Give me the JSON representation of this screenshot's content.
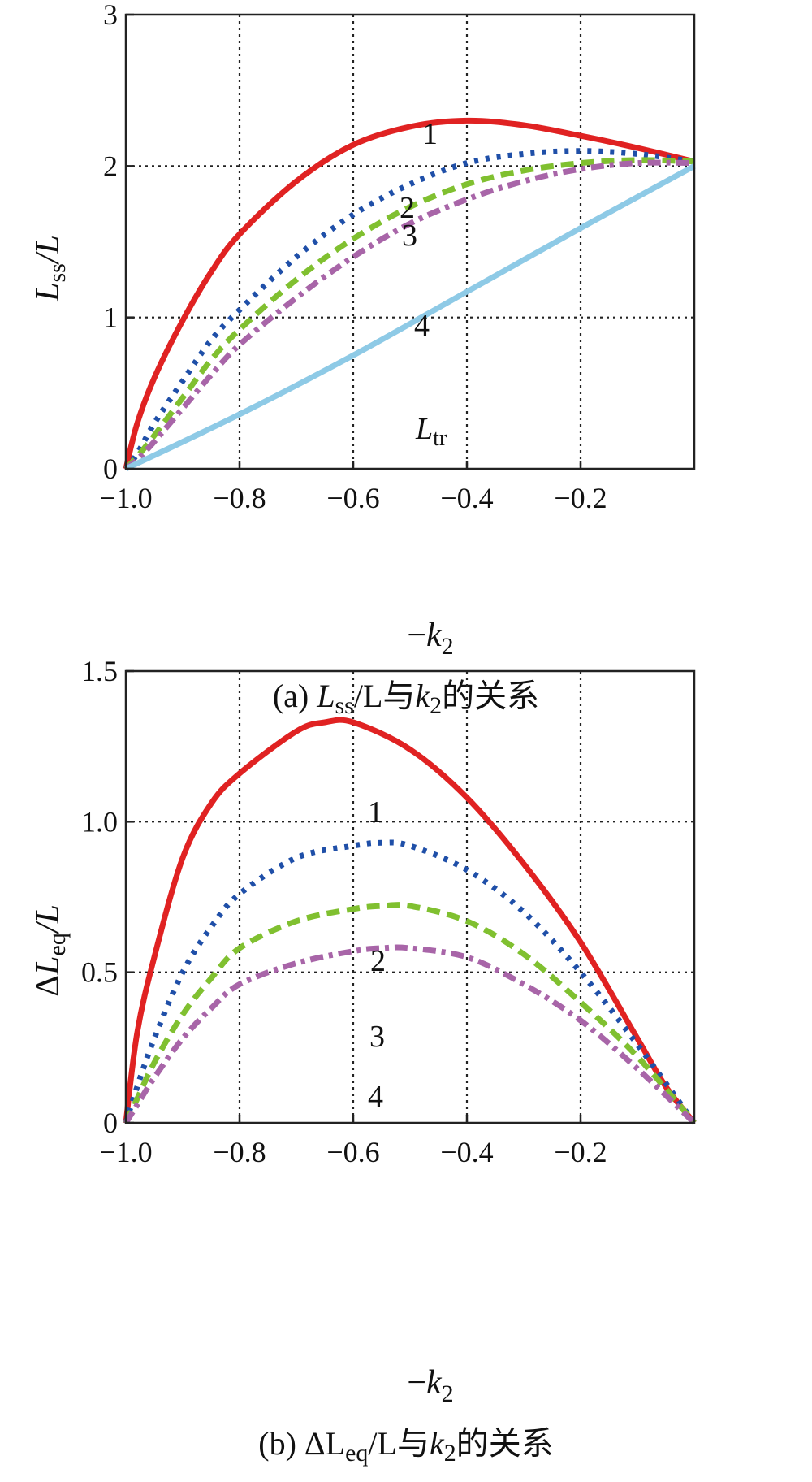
{
  "chart_data": [
    {
      "type": "line",
      "panel": "a",
      "xlabel": "−k",
      "xlabel_sub": "2",
      "ylabel": "L",
      "ylabel_sub": "ss",
      "ylabel_tail": "/L",
      "caption": {
        "prefix": "(a) ",
        "l1": "L",
        "sub1": "ss",
        "mid": "/L与",
        "k": "k",
        "ksub": "2",
        "tail": "的关系"
      },
      "xlim": [
        -1.0,
        0.0
      ],
      "ylim": [
        0,
        3
      ],
      "x_ticks": [
        -1.0,
        -0.8,
        -0.6,
        -0.4,
        -0.2
      ],
      "x_tick_labels": [
        "−1.0",
        "−0.8",
        "−0.6",
        "−0.4",
        "−0.2"
      ],
      "y_ticks": [
        0,
        1,
        2,
        3
      ],
      "y_tick_labels": [
        "0",
        "1",
        "2",
        "3"
      ],
      "grid": true,
      "series": [
        {
          "name": "1",
          "color": "#e02222",
          "style": "solid",
          "x": [
            -1.0,
            -0.98,
            -0.95,
            -0.9,
            -0.85,
            -0.8,
            -0.7,
            -0.6,
            -0.5,
            -0.4,
            -0.3,
            -0.2,
            -0.1,
            0.0
          ],
          "y": [
            0.0,
            0.3,
            0.6,
            0.98,
            1.3,
            1.55,
            1.9,
            2.14,
            2.26,
            2.3,
            2.27,
            2.2,
            2.12,
            2.03
          ]
        },
        {
          "name": "2",
          "color": "#1f4fa8",
          "style": "dotted",
          "x": [
            -1.0,
            -0.98,
            -0.95,
            -0.9,
            -0.85,
            -0.8,
            -0.7,
            -0.6,
            -0.5,
            -0.4,
            -0.3,
            -0.2,
            -0.1,
            0.0
          ],
          "y": [
            0.0,
            0.1,
            0.3,
            0.58,
            0.85,
            1.05,
            1.4,
            1.68,
            1.88,
            2.02,
            2.08,
            2.1,
            2.08,
            2.03
          ]
        },
        {
          "name": "3",
          "color": "#80c030",
          "style": "dashed",
          "x": [
            -1.0,
            -0.98,
            -0.95,
            -0.9,
            -0.85,
            -0.8,
            -0.7,
            -0.6,
            -0.5,
            -0.4,
            -0.3,
            -0.2,
            -0.1,
            0.0
          ],
          "y": [
            0.0,
            0.08,
            0.22,
            0.47,
            0.72,
            0.92,
            1.25,
            1.52,
            1.73,
            1.88,
            1.97,
            2.02,
            2.04,
            2.03
          ]
        },
        {
          "name": "4",
          "color": "#a865a8",
          "style": "dashdot",
          "x": [
            -1.0,
            -0.98,
            -0.95,
            -0.9,
            -0.85,
            -0.8,
            -0.7,
            -0.6,
            -0.5,
            -0.4,
            -0.3,
            -0.2,
            -0.1,
            0.0
          ],
          "y": [
            0.0,
            0.06,
            0.18,
            0.4,
            0.62,
            0.82,
            1.13,
            1.4,
            1.62,
            1.78,
            1.9,
            1.98,
            2.02,
            2.02
          ]
        },
        {
          "name": "L",
          "name_sub": "tr",
          "color": "#8ecae6",
          "style": "solid",
          "x": [
            -1.0,
            -0.8,
            -0.6,
            -0.4,
            -0.2,
            0.0
          ],
          "y": [
            0.0,
            0.36,
            0.75,
            1.17,
            1.59,
            2.0
          ]
        }
      ]
    },
    {
      "type": "line",
      "panel": "b",
      "xlabel": "−k",
      "xlabel_sub": "2",
      "ylabel": "ΔL",
      "ylabel_sub": "eq",
      "ylabel_tail": "/L",
      "caption": {
        "prefix": "(b) ΔL",
        "sub1": "eq",
        "mid": "/L与",
        "k": "k",
        "ksub": "2",
        "tail": "的关系"
      },
      "xlim": [
        -1.0,
        0.0
      ],
      "ylim": [
        0,
        1.5
      ],
      "x_ticks": [
        -1.0,
        -0.8,
        -0.6,
        -0.4,
        -0.2
      ],
      "x_tick_labels": [
        "−1.0",
        "−0.8",
        "−0.6",
        "−0.4",
        "−0.2"
      ],
      "y_ticks": [
        0,
        0.5,
        1.0,
        1.5
      ],
      "y_tick_labels": [
        "0",
        "0.5",
        "1.0",
        "1.5"
      ],
      "grid": true,
      "series": [
        {
          "name": "1",
          "color": "#e02222",
          "style": "solid",
          "x": [
            -1.0,
            -0.98,
            -0.95,
            -0.9,
            -0.85,
            -0.8,
            -0.7,
            -0.65,
            -0.6,
            -0.5,
            -0.4,
            -0.3,
            -0.2,
            -0.1,
            -0.05,
            0.0
          ],
          "y": [
            0.0,
            0.3,
            0.55,
            0.88,
            1.06,
            1.16,
            1.3,
            1.33,
            1.33,
            1.24,
            1.08,
            0.86,
            0.6,
            0.28,
            0.12,
            0.0
          ]
        },
        {
          "name": "2",
          "color": "#1f4fa8",
          "style": "dotted",
          "x": [
            -1.0,
            -0.98,
            -0.95,
            -0.9,
            -0.85,
            -0.8,
            -0.7,
            -0.6,
            -0.55,
            -0.5,
            -0.4,
            -0.3,
            -0.2,
            -0.1,
            0.0
          ],
          "y": [
            0.0,
            0.12,
            0.28,
            0.5,
            0.65,
            0.76,
            0.88,
            0.92,
            0.93,
            0.92,
            0.84,
            0.7,
            0.5,
            0.26,
            0.0
          ]
        },
        {
          "name": "3",
          "color": "#80c030",
          "style": "dashed",
          "x": [
            -1.0,
            -0.98,
            -0.95,
            -0.9,
            -0.85,
            -0.8,
            -0.7,
            -0.6,
            -0.55,
            -0.5,
            -0.4,
            -0.3,
            -0.2,
            -0.1,
            0.0
          ],
          "y": [
            0.0,
            0.08,
            0.2,
            0.36,
            0.48,
            0.58,
            0.67,
            0.71,
            0.72,
            0.72,
            0.67,
            0.56,
            0.4,
            0.22,
            0.0
          ]
        },
        {
          "name": "4",
          "color": "#a865a8",
          "style": "dashdot",
          "x": [
            -1.0,
            -0.98,
            -0.95,
            -0.9,
            -0.85,
            -0.8,
            -0.7,
            -0.6,
            -0.55,
            -0.5,
            -0.4,
            -0.3,
            -0.2,
            -0.1,
            0.0
          ],
          "y": [
            0.0,
            0.06,
            0.15,
            0.28,
            0.38,
            0.46,
            0.53,
            0.57,
            0.58,
            0.58,
            0.55,
            0.46,
            0.34,
            0.18,
            0.0
          ]
        }
      ]
    }
  ]
}
